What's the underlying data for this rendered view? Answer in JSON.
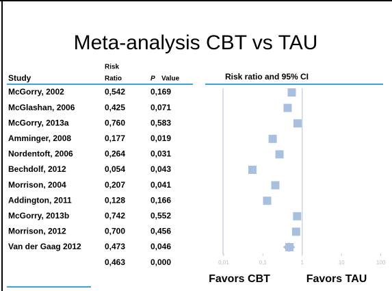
{
  "chart_data": {
    "type": "forest",
    "title": "Meta-analysis CBT vs TAU",
    "column_headers": {
      "study": "Study",
      "ratio": [
        "Risk",
        "Ratio"
      ],
      "p": [
        "P",
        "Value"
      ]
    },
    "plot_title": "Risk ratio and 95% CI",
    "categories": [
      "McGorry, 2002",
      "McGlashan, 2006",
      "McGorry, 2013a",
      "Amminger, 2008",
      "Nordentoft, 2006",
      "Bechdolf, 2012",
      "Morrison, 2004",
      "Addington, 2011",
      "McGorry, 2013b",
      "Morrison, 2012",
      "Van der Gaag 2012",
      null
    ],
    "values": [
      0.542,
      0.425,
      0.76,
      0.177,
      0.264,
      0.054,
      0.207,
      0.128,
      0.742,
      0.7,
      0.473,
      0.463
    ],
    "value_labels": [
      "0,542",
      "0,425",
      "0,760",
      "0,177",
      "0,264",
      "0,054",
      "0,207",
      "0,128",
      "0,742",
      "0,700",
      "0,473",
      "0,463"
    ],
    "p_value_labels": [
      "0,169",
      "0,071",
      "0,583",
      "0,019",
      "0,031",
      "0,043",
      "0,041",
      "0,166",
      "0,552",
      "0,456",
      "0,046",
      "0,000"
    ],
    "xlim": [
      0.007,
      140
    ],
    "log_x": true,
    "xticks": [
      {
        "value": 0.01,
        "label": "0,01"
      },
      {
        "value": 0.1,
        "label": "0,1"
      },
      1,
      10,
      100
    ],
    "annotations": [
      "Favors CBT",
      "Favors TAU"
    ],
    "color": "#a9bfe0"
  }
}
